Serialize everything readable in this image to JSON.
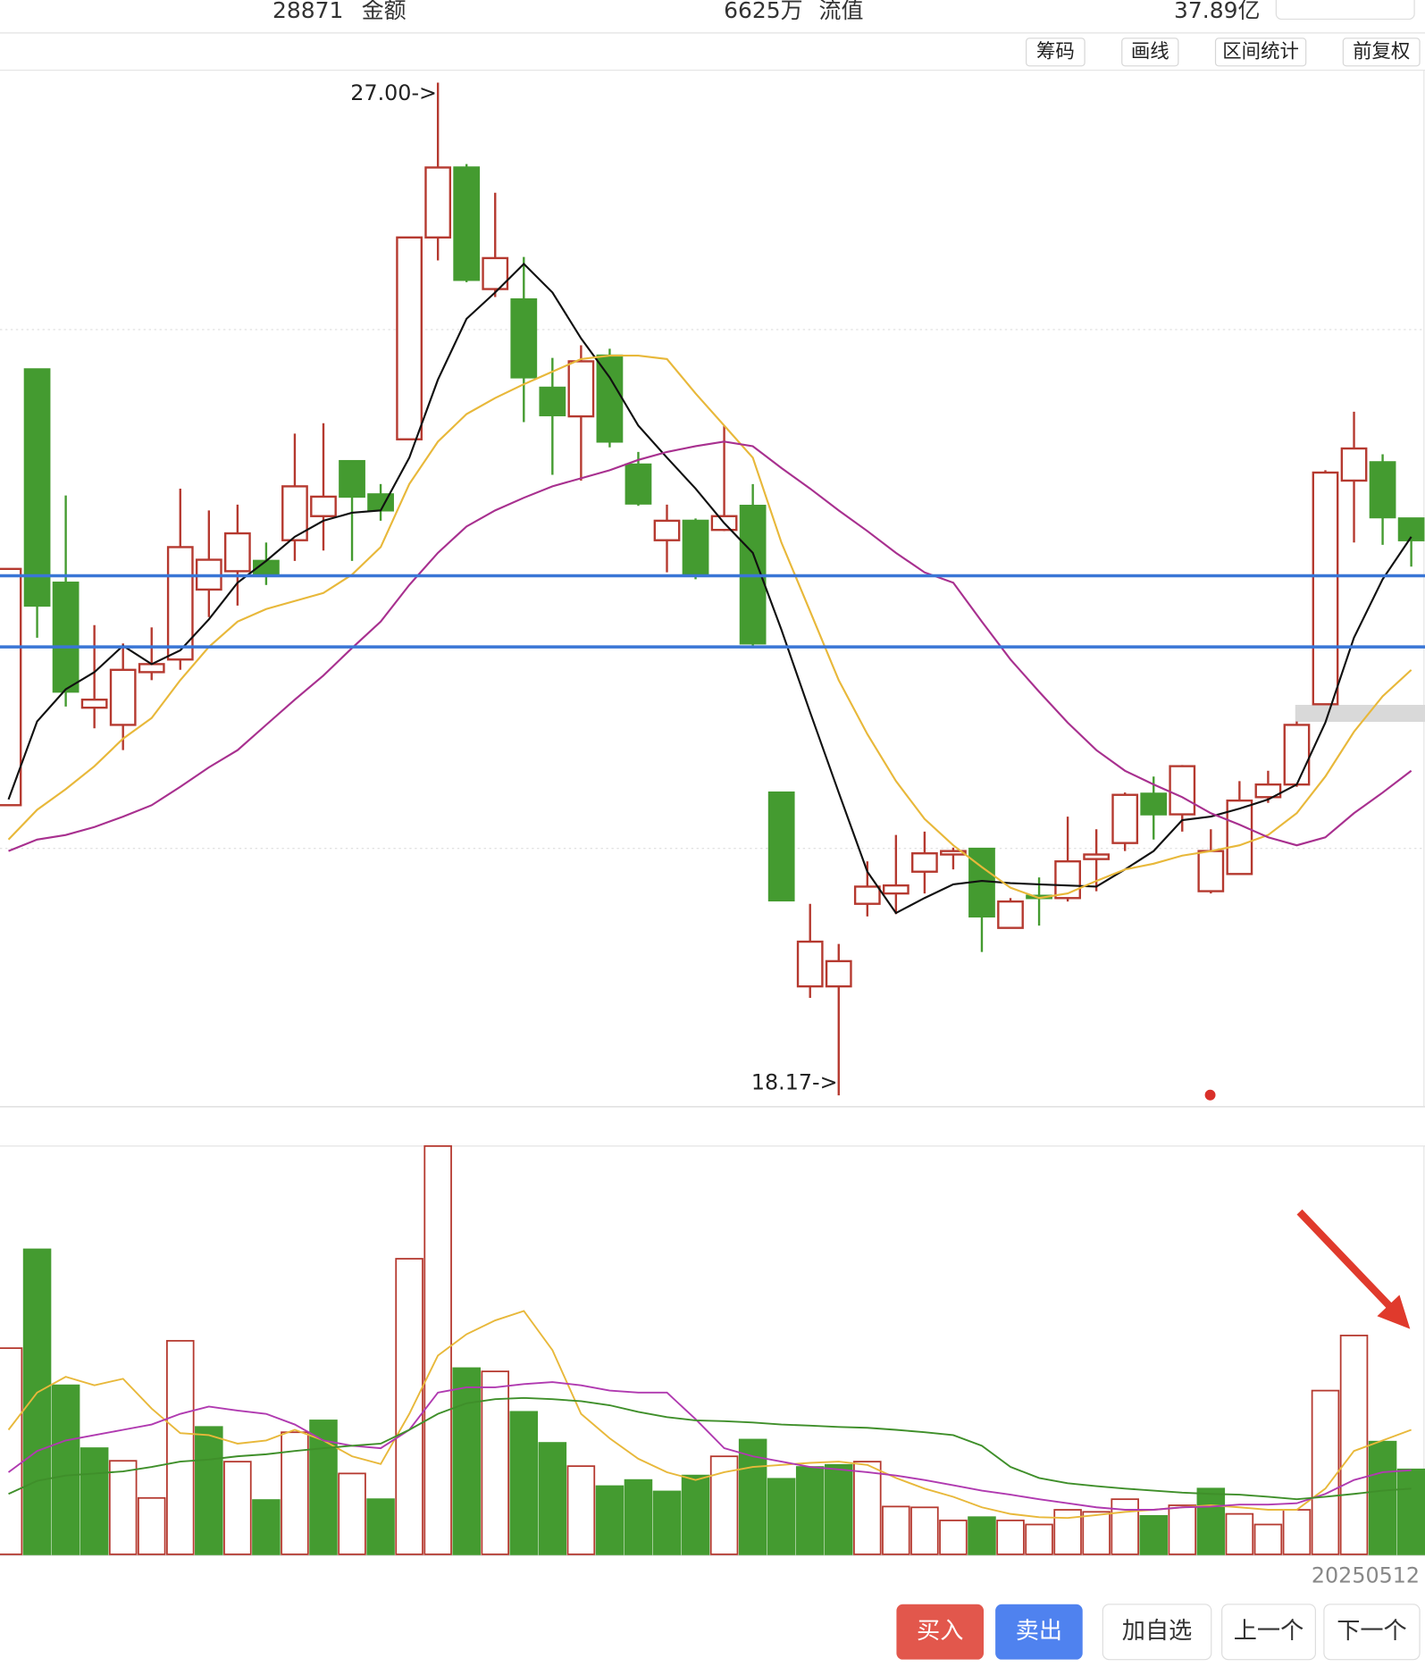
{
  "header": {
    "items": [
      {
        "value": "28871",
        "label": "金额"
      },
      {
        "value": "6625万",
        "label": "流值"
      },
      {
        "value": "37.89亿"
      }
    ]
  },
  "toolbar": [
    "筹码",
    "画线",
    "区间统计",
    "前复权"
  ],
  "chart_data": [
    {
      "type": "candlestick",
      "categories": [
        null,
        null,
        null,
        null,
        null,
        null,
        null,
        null,
        null,
        null,
        null,
        null,
        null,
        null,
        null,
        null,
        null,
        null,
        null,
        null,
        null,
        null,
        null,
        null,
        null,
        null,
        null,
        null,
        null,
        null,
        null,
        null,
        null,
        null,
        null,
        null,
        null,
        null,
        null,
        null,
        null,
        null,
        null,
        null,
        null,
        null,
        null,
        null,
        null,
        "20250512"
      ],
      "open": [
        20.7,
        24.5,
        22.64,
        21.55,
        21.4,
        21.86,
        21.97,
        22.58,
        22.74,
        22.83,
        23.01,
        23.22,
        23.7,
        23.41,
        23.89,
        25.65,
        26.26,
        25.2,
        25.11,
        24.34,
        24.09,
        24.62,
        23.67,
        23.01,
        23.18,
        23.1,
        23.31,
        20.81,
        19.12,
        19.12,
        19.84,
        19.93,
        20.12,
        20.27,
        20.32,
        19.63,
        19.91,
        19.89,
        20.23,
        20.37,
        20.8,
        20.62,
        19.95,
        20.1,
        20.77,
        20.88,
        21.58,
        23.53,
        23.69,
        23.2
      ],
      "high": [
        22.76,
        24.5,
        23.4,
        22.27,
        22.11,
        22.25,
        23.46,
        23.27,
        23.32,
        22.99,
        23.94,
        24.03,
        23.7,
        23.5,
        25.65,
        27.0,
        26.29,
        26.04,
        25.48,
        24.6,
        24.71,
        24.68,
        23.78,
        23.32,
        23.2,
        24.01,
        23.5,
        20.81,
        19.84,
        19.49,
        20.21,
        20.44,
        20.47,
        20.33,
        20.32,
        19.89,
        20.07,
        20.6,
        20.49,
        20.81,
        20.95,
        21.05,
        20.49,
        20.91,
        21.0,
        21.43,
        23.62,
        24.13,
        23.76,
        23.2
      ],
      "low": [
        20.7,
        22.16,
        21.56,
        21.37,
        21.18,
        21.79,
        21.88,
        22.34,
        22.44,
        22.62,
        22.83,
        22.92,
        22.83,
        23.18,
        23.89,
        25.45,
        25.26,
        25.13,
        24.04,
        23.58,
        23.53,
        23.82,
        23.31,
        22.73,
        22.67,
        23.09,
        22.08,
        19.87,
        19.02,
        18.17,
        19.73,
        19.75,
        19.93,
        20.14,
        19.42,
        19.63,
        19.65,
        19.86,
        19.95,
        20.3,
        20.4,
        20.47,
        19.93,
        20.1,
        20.72,
        20.86,
        21.58,
        22.99,
        22.97,
        22.78
      ],
      "close": [
        22.76,
        22.44,
        21.69,
        21.62,
        21.88,
        21.93,
        22.95,
        22.84,
        23.07,
        22.71,
        23.48,
        23.39,
        23.39,
        23.27,
        25.65,
        26.26,
        25.28,
        25.47,
        24.43,
        24.1,
        24.57,
        23.87,
        23.33,
        23.18,
        22.71,
        23.22,
        22.11,
        19.87,
        19.51,
        19.34,
        19.99,
        20.0,
        20.28,
        20.3,
        19.73,
        19.86,
        19.89,
        20.21,
        20.27,
        20.79,
        20.62,
        21.04,
        20.3,
        20.74,
        20.88,
        21.4,
        23.6,
        23.81,
        23.21,
        23.01
      ],
      "up_color": "#b5392f",
      "down_color": "#449b30",
      "ylim": [
        18.08,
        27.09
      ],
      "annotations": [
        {
          "value": 27.0,
          "label": "27.00->"
        },
        {
          "value": 18.17,
          "label": "18.17->"
        }
      ],
      "hlines": {
        "color": "#3a76d6",
        "values": [
          22.7,
          22.08
        ]
      },
      "series": [
        {
          "color": "#111111",
          "values": [
            20.75,
            21.43,
            21.71,
            21.86,
            22.09,
            21.93,
            22.05,
            22.32,
            22.64,
            22.83,
            23.04,
            23.18,
            23.25,
            23.27,
            23.73,
            24.41,
            24.94,
            25.17,
            25.42,
            25.17,
            24.77,
            24.43,
            24.01,
            23.73,
            23.46,
            23.16,
            22.9,
            22.23,
            21.51,
            20.81,
            20.12,
            19.76,
            19.89,
            20.01,
            20.04,
            20.02,
            20.01,
            20.0,
            19.99,
            20.14,
            20.3,
            20.57,
            20.6,
            20.67,
            20.75,
            20.88,
            21.42,
            22.16,
            22.67,
            23.04
          ]
        },
        {
          "color": "#e8b83a",
          "values": [
            20.4,
            20.66,
            20.84,
            21.04,
            21.28,
            21.46,
            21.79,
            22.08,
            22.3,
            22.41,
            22.48,
            22.55,
            22.71,
            22.95,
            23.5,
            23.87,
            24.11,
            24.25,
            24.37,
            24.48,
            24.59,
            24.62,
            24.62,
            24.59,
            24.29,
            24.01,
            23.73,
            22.99,
            22.39,
            21.79,
            21.32,
            20.91,
            20.58,
            20.35,
            20.16,
            19.98,
            19.89,
            19.93,
            20.04,
            20.14,
            20.19,
            20.26,
            20.3,
            20.35,
            20.44,
            20.63,
            20.95,
            21.34,
            21.65,
            21.88
          ]
        },
        {
          "color": "#a8308f",
          "values": [
            20.3,
            20.4,
            20.44,
            20.51,
            20.6,
            20.7,
            20.86,
            21.03,
            21.18,
            21.4,
            21.62,
            21.83,
            22.07,
            22.3,
            22.62,
            22.9,
            23.13,
            23.27,
            23.38,
            23.48,
            23.55,
            23.62,
            23.71,
            23.78,
            23.83,
            23.87,
            23.83,
            23.64,
            23.46,
            23.27,
            23.09,
            22.9,
            22.73,
            22.64,
            22.3,
            21.97,
            21.69,
            21.42,
            21.18,
            21.0,
            20.88,
            20.77,
            20.63,
            20.53,
            20.42,
            20.35,
            20.42,
            20.63,
            20.81,
            21.0
          ]
        }
      ]
    },
    {
      "type": "volume",
      "values": [
        50.5,
        74.7,
        41.4,
        26.0,
        22.9,
        13.8,
        52.3,
        31.2,
        22.7,
        13.3,
        29.9,
        32.8,
        19.8,
        13.5,
        72.4,
        100,
        45.6,
        44.8,
        34.9,
        27.3,
        21.6,
        16.7,
        18.2,
        15.4,
        19.3,
        24.0,
        28.1,
        18.5,
        21.4,
        21.9,
        22.7,
        11.7,
        11.5,
        8.3,
        9.1,
        8.3,
        7.3,
        10.9,
        10.4,
        13.5,
        9.4,
        12.0,
        16.1,
        9.9,
        7.3,
        10.9,
        40.1,
        53.6,
        27.6,
        20.8
      ],
      "ylim": [
        0,
        100
      ],
      "series": [
        {
          "color": "#e8b83a",
          "values": [
            30.5,
            39.6,
            43.5,
            41.4,
            43.0,
            35.7,
            29.7,
            29.2,
            27.1,
            27.9,
            30.5,
            27.9,
            24.0,
            22.1,
            34.4,
            48.7,
            53.9,
            57.3,
            59.6,
            50.0,
            34.4,
            28.4,
            23.4,
            20.1,
            18.2,
            20.1,
            21.4,
            21.9,
            22.4,
            22.7,
            21.9,
            18.7,
            16.1,
            14.1,
            11.5,
            9.9,
            9.1,
            8.9,
            9.6,
            10.4,
            10.9,
            11.5,
            12.0,
            11.5,
            10.9,
            10.9,
            16.1,
            25.3,
            27.9,
            30.5
          ]
        },
        {
          "color": "#b03ab0",
          "values": [
            20.1,
            25.3,
            27.9,
            29.2,
            30.5,
            31.8,
            34.4,
            36.2,
            35.2,
            34.4,
            31.8,
            27.9,
            26.6,
            26.0,
            30.5,
            39.6,
            40.9,
            40.9,
            41.7,
            42.2,
            41.4,
            40.1,
            39.6,
            39.6,
            33.1,
            26.0,
            24.0,
            22.7,
            21.4,
            20.8,
            20.1,
            19.3,
            18.2,
            16.9,
            15.6,
            14.6,
            13.5,
            12.5,
            11.5,
            10.9,
            10.9,
            11.5,
            11.7,
            12.2,
            12.2,
            12.5,
            14.8,
            18.2,
            20.1,
            20.6
          ]
        },
        {
          "color": "#3f8f2a",
          "values": [
            14.8,
            18.0,
            19.3,
            19.8,
            20.3,
            21.4,
            22.7,
            23.2,
            24.0,
            24.5,
            25.3,
            26.0,
            26.6,
            27.1,
            30.5,
            34.4,
            37.0,
            38.0,
            38.3,
            38.0,
            37.5,
            36.5,
            34.9,
            33.6,
            32.8,
            32.6,
            32.3,
            31.8,
            31.5,
            31.2,
            31.0,
            30.5,
            29.9,
            29.2,
            26.6,
            21.4,
            18.7,
            17.4,
            16.7,
            16.1,
            15.6,
            15.1,
            14.8,
            14.6,
            14.1,
            13.5,
            14.1,
            14.8,
            15.6,
            16.1
          ]
        }
      ]
    }
  ],
  "buttons": [
    "买入",
    "卖出",
    "加自选",
    "上一个",
    "下一个"
  ]
}
